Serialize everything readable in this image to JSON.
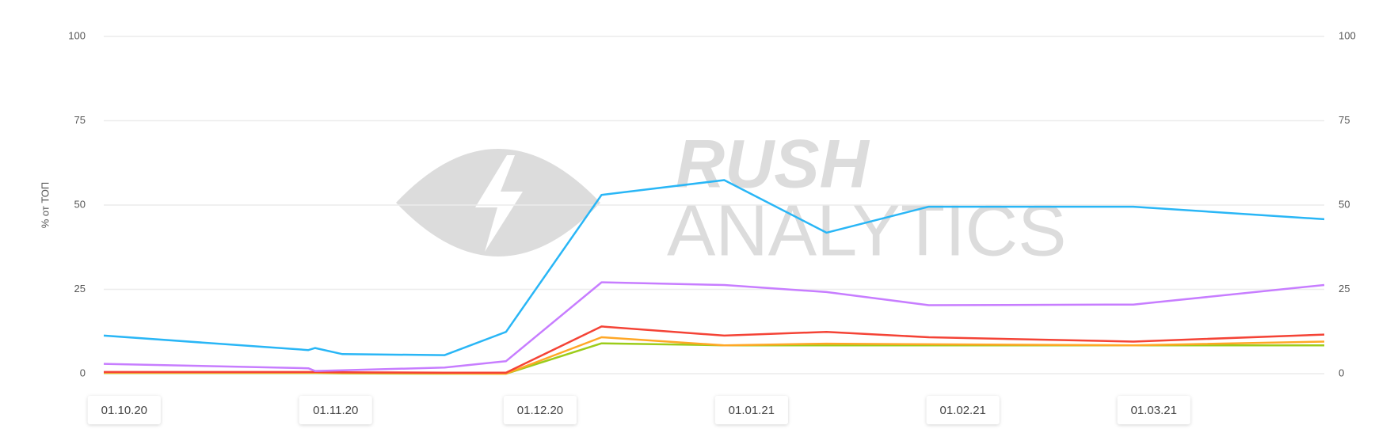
{
  "chart_data": {
    "type": "line",
    "y_label": "% от ТОП",
    "watermark": [
      "RUSH",
      "ANALYTICS"
    ],
    "x": [
      "28.09.20",
      "28.10.20",
      "29.10.20",
      "02.11.20",
      "17.11.20",
      "26.11.20",
      "10.12.20",
      "28.12.20",
      "12.01.21",
      "27.01.21",
      "26.02.21",
      "26.03.21"
    ],
    "xlim": [
      "28.09.20",
      "26.03.21"
    ],
    "xticks": [
      "01.10.20",
      "01.11.20",
      "01.12.20",
      "01.01.21",
      "01.02.21",
      "01.03.21"
    ],
    "ylim": [
      0,
      100
    ],
    "yticks": [
      0,
      25,
      50,
      75,
      100
    ],
    "grid": true,
    "series": [
      {
        "color": "#29b6f6",
        "values": [
          11.3,
          7,
          7.6,
          5.8,
          5.5,
          12.4,
          53,
          57.4,
          41.8,
          49.5,
          49.5,
          45.8
        ]
      },
      {
        "color": "#c77dff",
        "values": [
          2.9,
          1.6,
          0.8,
          1,
          1.8,
          3.7,
          27.1,
          26.3,
          24.2,
          20.3,
          20.5,
          26.3
        ]
      },
      {
        "color": "#f44336",
        "values": [
          0.5,
          0.5,
          0.5,
          0.4,
          0.3,
          0.3,
          14,
          11.3,
          12.4,
          10.8,
          9.5,
          11.6
        ]
      },
      {
        "color": "#ffa726",
        "values": [
          0.3,
          0.3,
          0.3,
          0.2,
          0.1,
          0,
          10.8,
          8.4,
          8.9,
          8.7,
          8.4,
          9.5
        ]
      },
      {
        "color": "#9ccc1a",
        "values": [
          0.2,
          0.2,
          0.2,
          0.1,
          0,
          0,
          9,
          8.4,
          8.4,
          8.4,
          8.4,
          8.4
        ]
      }
    ]
  }
}
